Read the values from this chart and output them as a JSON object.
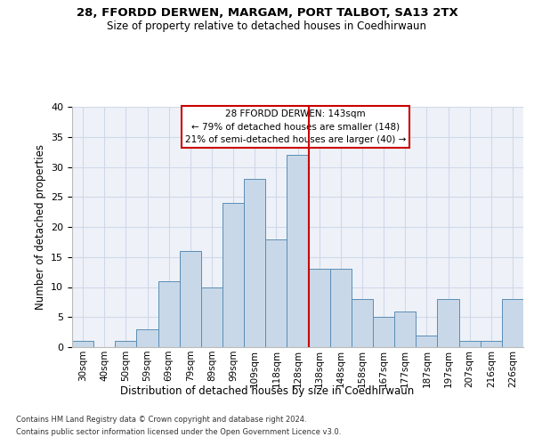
{
  "title1": "28, FFORDD DERWEN, MARGAM, PORT TALBOT, SA13 2TX",
  "title2": "Size of property relative to detached houses in Coedhirwaun",
  "xlabel": "Distribution of detached houses by size in Coedhirwaun",
  "ylabel": "Number of detached properties",
  "footer1": "Contains HM Land Registry data © Crown copyright and database right 2024.",
  "footer2": "Contains public sector information licensed under the Open Government Licence v3.0.",
  "bar_labels": [
    "30sqm",
    "40sqm",
    "50sqm",
    "59sqm",
    "69sqm",
    "79sqm",
    "89sqm",
    "99sqm",
    "109sqm",
    "118sqm",
    "128sqm",
    "138sqm",
    "148sqm",
    "158sqm",
    "167sqm",
    "177sqm",
    "187sqm",
    "197sqm",
    "207sqm",
    "216sqm",
    "226sqm"
  ],
  "bar_values": [
    1,
    0,
    1,
    3,
    11,
    16,
    10,
    24,
    28,
    18,
    32,
    13,
    13,
    8,
    5,
    6,
    2,
    8,
    1,
    1,
    8
  ],
  "bar_color": "#c8d8e8",
  "bar_edge_color": "#5a8db5",
  "grid_color": "#d0d8e8",
  "background_color": "#eef2f8",
  "annotation_line1": "28 FFORDD DERWEN: 143sqm",
  "annotation_line2": "← 79% of detached houses are smaller (148)",
  "annotation_line3": "21% of semi-detached houses are larger (40) →",
  "vline_index": 11,
  "vline_color": "#cc0000",
  "box_color": "#cc0000",
  "ylim": [
    0,
    40
  ],
  "yticks": [
    0,
    5,
    10,
    15,
    20,
    25,
    30,
    35,
    40
  ]
}
